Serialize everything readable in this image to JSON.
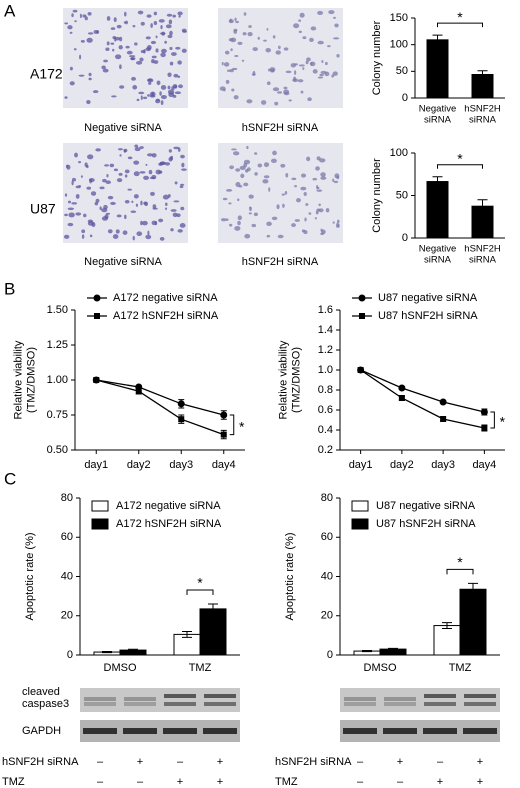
{
  "panels": [
    "A",
    "B",
    "C"
  ],
  "images": {
    "rows": [
      "A172",
      "U87"
    ],
    "captions": [
      [
        "Negative siRNA",
        "hSNF2H siRNA"
      ],
      [
        "Negative siRNA",
        "hSNF2H siRNA"
      ]
    ]
  },
  "blots": [
    {
      "bands": [
        [
          "cleaved",
          "caspase3"
        ],
        [
          "GAPDH"
        ]
      ],
      "rows": [
        {
          "label": "hSNF2H siRNA",
          "signs": [
            "–",
            "+",
            "–",
            "+"
          ]
        },
        {
          "label": "TMZ",
          "signs": [
            "–",
            "–",
            "+",
            "+"
          ]
        }
      ]
    },
    {
      "rows": [
        {
          "label": "hSNF2H siRNA",
          "signs": [
            "–",
            "+",
            "–",
            "+"
          ]
        },
        {
          "label": "TMZ",
          "signs": [
            "–",
            "–",
            "+",
            "+"
          ]
        }
      ]
    }
  ],
  "chart_data": [
    {
      "type": "bar",
      "ylabel": "Colony number",
      "categories": [
        "Negative siRNA",
        "hSNF2H siRNA"
      ],
      "values": [
        110,
        45
      ],
      "errors": [
        8,
        6
      ],
      "color": "#000000",
      "ylim": [
        0,
        150
      ],
      "yticks": [
        0,
        50,
        100,
        150
      ],
      "annotation": "*"
    },
    {
      "type": "bar",
      "ylabel": "Colony number",
      "categories": [
        "Negative siRNA",
        "hSNF2H siRNA"
      ],
      "values": [
        67,
        38
      ],
      "errors": [
        5,
        7
      ],
      "color": "#000000",
      "ylim": [
        0,
        100
      ],
      "yticks": [
        0,
        50,
        100
      ],
      "annotation": "*"
    },
    {
      "type": "line",
      "ylabel": "Relative viability (TMZ/DMSO)",
      "categories": [
        "day1",
        "day2",
        "day3",
        "day4"
      ],
      "series": [
        {
          "name": "A172 negative siRNA",
          "color": "#000000",
          "marker": "circle",
          "values": [
            1.0,
            0.95,
            0.83,
            0.75
          ],
          "errors": [
            0.01,
            0.01,
            0.03,
            0.03
          ]
        },
        {
          "name": "A172 hSNF2H siRNA",
          "color": "#000000",
          "marker": "square",
          "values": [
            1.0,
            0.92,
            0.72,
            0.61
          ],
          "errors": [
            0.01,
            0.02,
            0.03,
            0.03
          ]
        }
      ],
      "ylim": [
        0.5,
        1.5
      ],
      "yticks": [
        {
          "value": 0.5,
          "label": "0.50"
        },
        0.75,
        {
          "value": 1,
          "label": "1.00"
        },
        1.25,
        {
          "value": 1.5,
          "label": "1.50"
        }
      ],
      "annotation": "*"
    },
    {
      "type": "line",
      "ylabel": "Relative viability (TMZ/DMSO)",
      "categories": [
        "day1",
        "day2",
        "day3",
        "day4"
      ],
      "series": [
        {
          "name": "U87 negative siRNA",
          "color": "#000000",
          "marker": "circle",
          "values": [
            1.0,
            0.82,
            0.68,
            0.58
          ],
          "errors": [
            0.01,
            0.01,
            0.01,
            0.03
          ]
        },
        {
          "name": "U87 hSNF2H siRNA",
          "color": "#000000",
          "marker": "square",
          "values": [
            1.0,
            0.72,
            0.51,
            0.42
          ],
          "errors": [
            0.01,
            0.02,
            0.02,
            0.03
          ]
        }
      ],
      "ylim": [
        0.2,
        1.6
      ],
      "yticks": [
        0.2,
        0.4,
        0.6,
        0.8,
        {
          "value": 1,
          "label": "1.0"
        },
        1.2,
        1.4,
        1.6
      ],
      "annotation": "*"
    },
    {
      "type": "grouped_bar",
      "ylabel": "Apoptotic rate (%)",
      "categories": [
        "DMSO",
        "TMZ"
      ],
      "series": [
        {
          "name": "A172 negative siRNA",
          "color": "#ffffff",
          "values": [
            1.5,
            10.5
          ],
          "errors": [
            0.3,
            1.5
          ]
        },
        {
          "name": "A172 hSNF2H siRNA",
          "color": "#000000",
          "values": [
            2.5,
            23.5
          ],
          "errors": [
            0.4,
            2.5
          ]
        }
      ],
      "ylim": [
        0,
        80
      ],
      "yticks": [
        0,
        20,
        40,
        60,
        80
      ],
      "annotation": "*"
    },
    {
      "type": "grouped_bar",
      "ylabel": "Apoptotic rate (%)",
      "categories": [
        "DMSO",
        "TMZ"
      ],
      "series": [
        {
          "name": "U87 negative siRNA",
          "color": "#ffffff",
          "values": [
            2,
            15
          ],
          "errors": [
            0.3,
            1.5
          ]
        },
        {
          "name": "U87 hSNF2H siRNA",
          "color": "#000000",
          "values": [
            3,
            33.5
          ],
          "errors": [
            0.4,
            3
          ]
        }
      ],
      "ylim": [
        0,
        80
      ],
      "yticks": [
        0,
        20,
        40,
        60,
        80
      ],
      "annotation": "*"
    }
  ]
}
